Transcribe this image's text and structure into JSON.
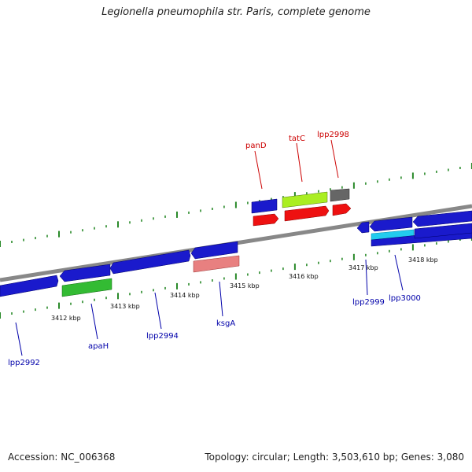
{
  "title": "Legionella pneumophila str. Paris, complete genome",
  "footer": {
    "accession": "Accession: NC_006368",
    "summary": "Topology: circular; Length: 3,503,610 bp; Genes: 3,080"
  },
  "scale_labels": [
    "3412 kbp",
    "3413 kbp",
    "3414 kbp",
    "3415 kbp",
    "3416 kbp",
    "3417 kbp",
    "3418 kbp"
  ],
  "gene_labels": {
    "top": [
      "panD",
      "tatC",
      "lpp2998"
    ],
    "bottom": [
      "lpp2992",
      "apaH",
      "lpp2994",
      "ksgA",
      "lpp2999",
      "lpp3000"
    ]
  },
  "colors": {
    "backbone": "#8a8a8a",
    "blue": "#1a1acc",
    "red": "#ee1111",
    "lime": "#aaee22",
    "gray": "#666666",
    "green": "#33bb33",
    "pink": "#e88080",
    "cyan": "#22ccee",
    "ticks": "#2a8a2a",
    "label_top": "#cc0000",
    "label_bottom": "#0000aa"
  }
}
